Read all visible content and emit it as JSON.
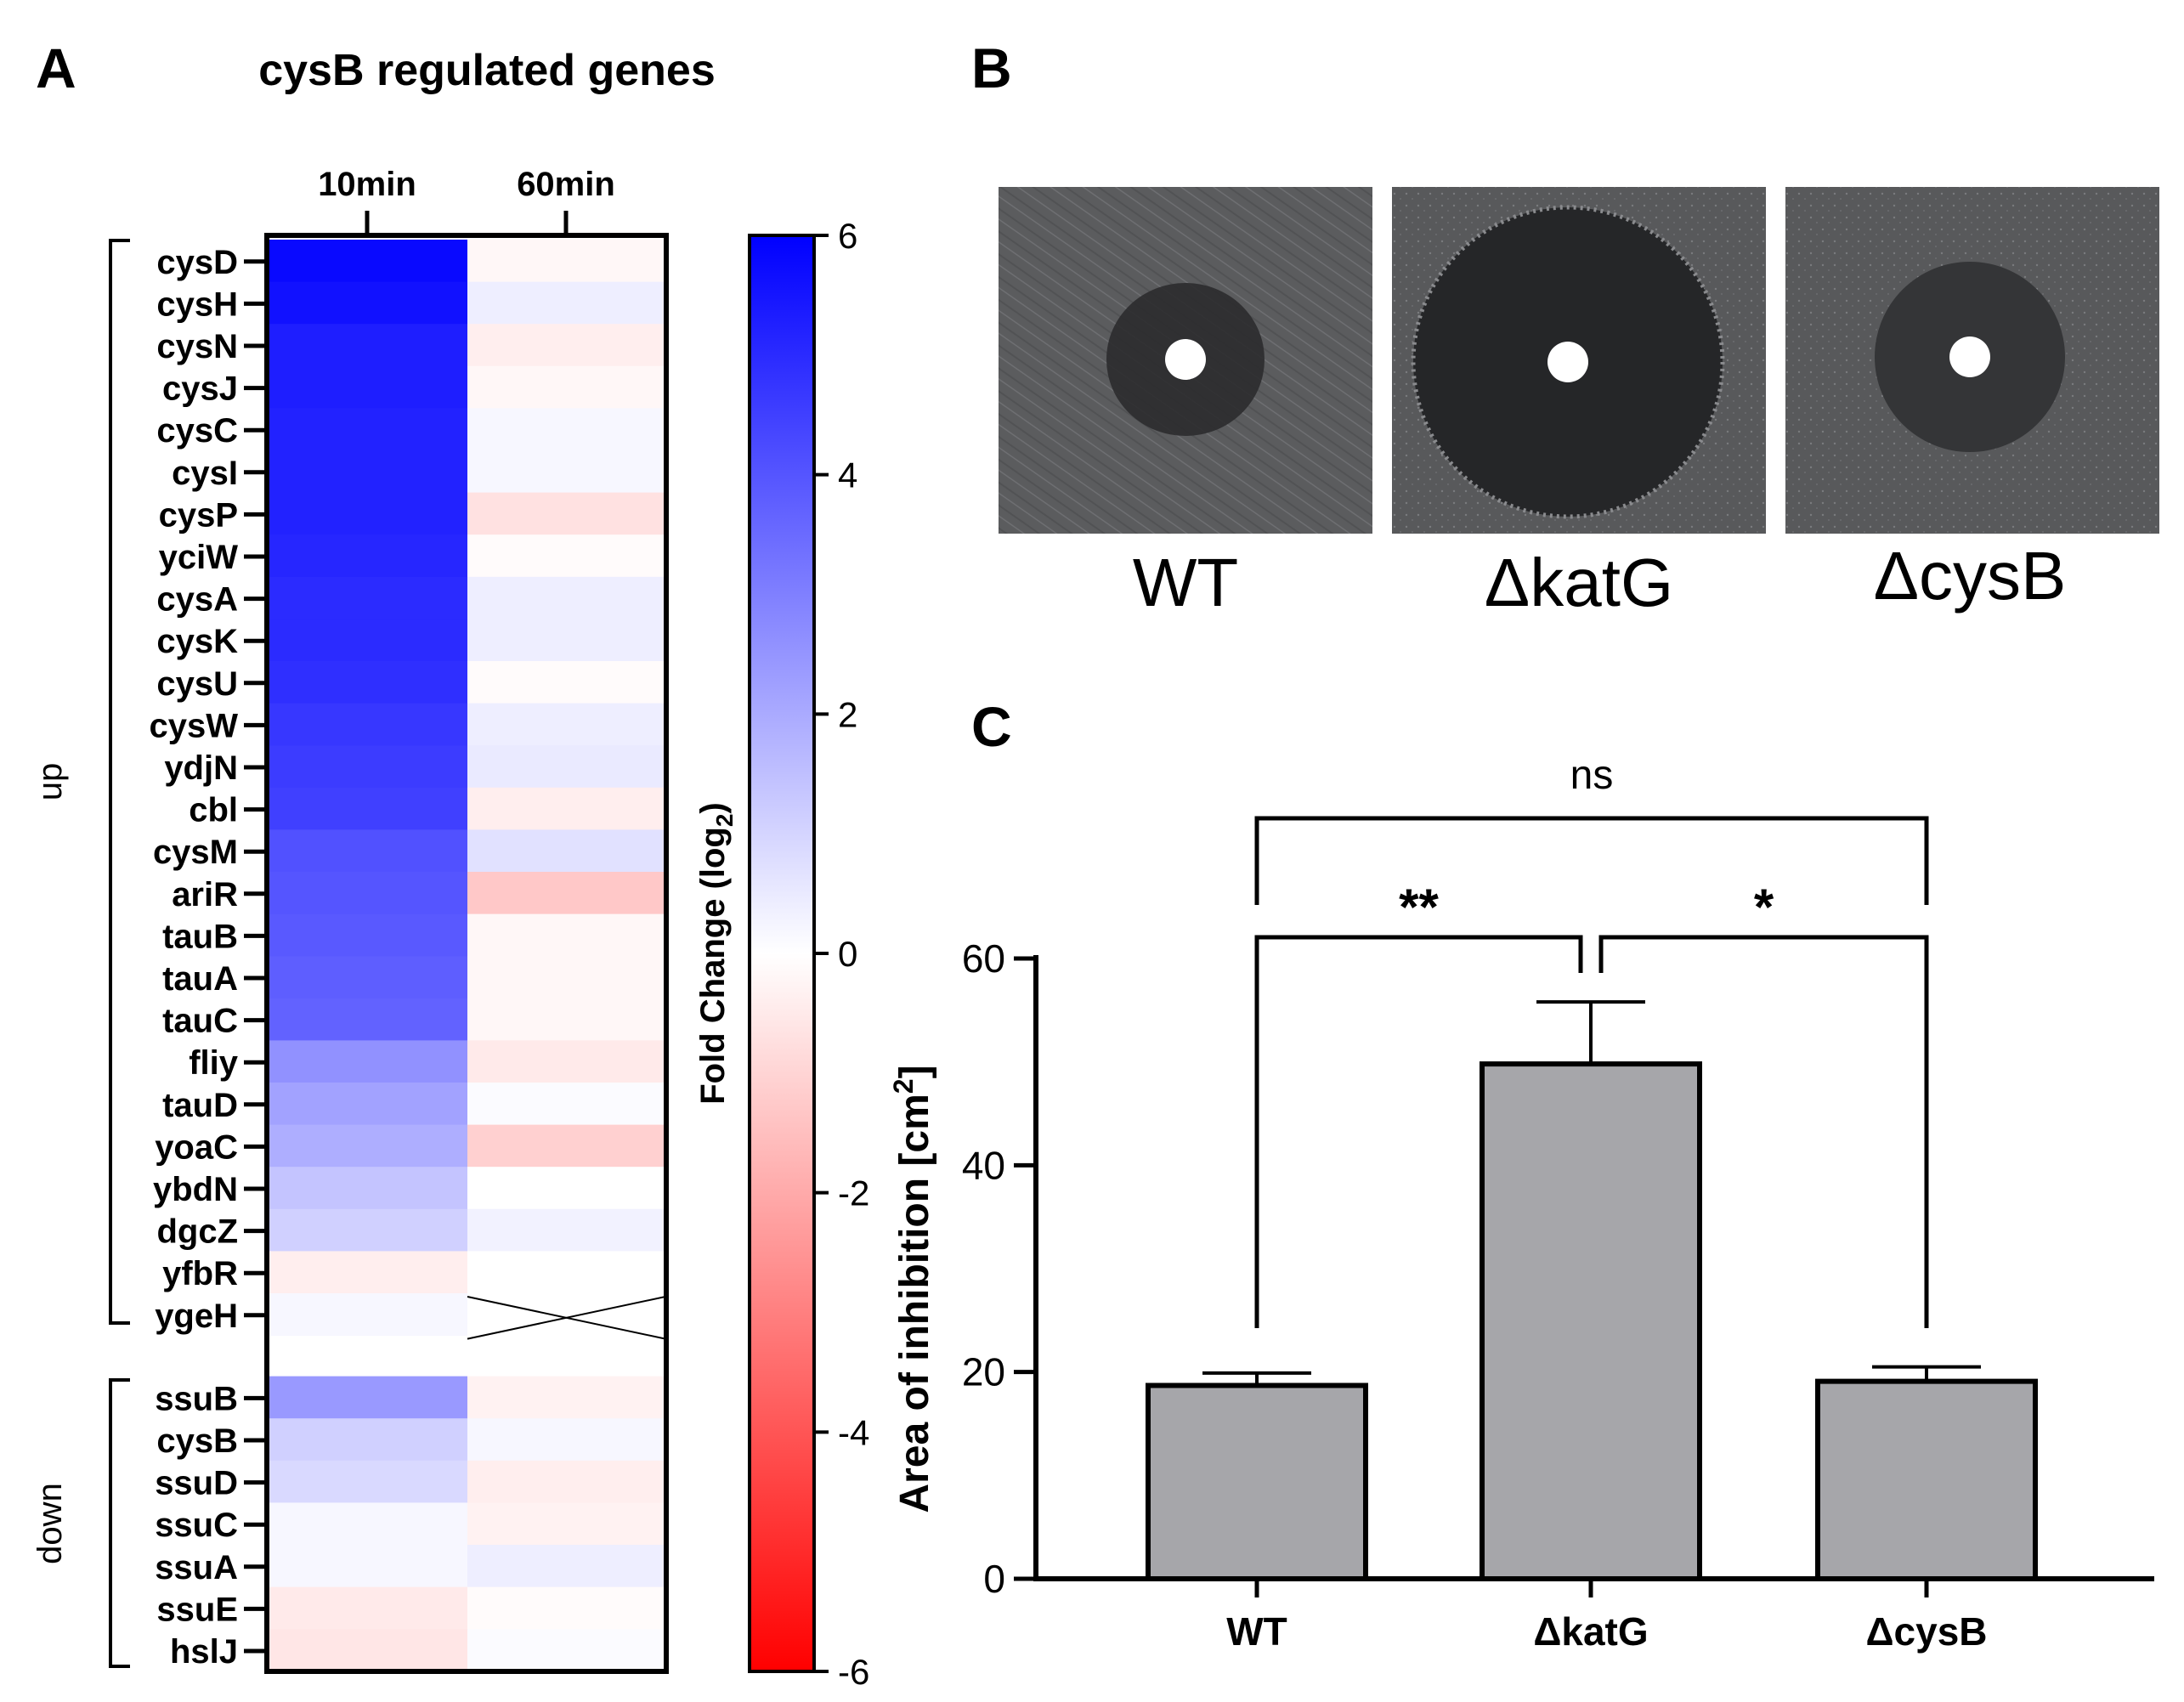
{
  "panels": {
    "a": {
      "letter": "A"
    },
    "b": {
      "letter": "B"
    },
    "c": {
      "letter": "C"
    }
  },
  "chart_data": [
    {
      "type": "heatmap",
      "title": "cysB regulated genes",
      "columns": [
        "10min",
        "60min"
      ],
      "groups": [
        {
          "name": "up",
          "genes": [
            "cysD",
            "cysH",
            "cysN",
            "cysJ",
            "cysC",
            "cysI",
            "cysP",
            "yciW",
            "cysA",
            "cysK",
            "cysU",
            "cysW",
            "ydjN",
            "cbl",
            "cysM",
            "ariR",
            "tauB",
            "tauA",
            "tauC",
            "fliy",
            "tauD",
            "yoaC",
            "ybdN",
            "dgcZ",
            "yfbR",
            "ygeH"
          ]
        },
        {
          "name": "down",
          "genes": [
            "ssuB",
            "cysB",
            "ssuD",
            "ssuC",
            "ssuA",
            "ssuE",
            "hslJ"
          ]
        }
      ],
      "values_10min": [
        5.8,
        5.6,
        5.3,
        5.3,
        5.2,
        5.2,
        5.2,
        5.1,
        5.0,
        5.0,
        4.9,
        4.7,
        4.6,
        4.5,
        4.1,
        4.0,
        3.9,
        3.8,
        3.7,
        2.6,
        2.2,
        1.9,
        1.4,
        1.1,
        -0.4,
        0.2,
        2.4,
        1.1,
        0.9,
        0.2,
        0.2,
        -0.5,
        -0.6
      ],
      "values_60min": [
        -0.2,
        0.4,
        -0.4,
        -0.2,
        0.2,
        0.2,
        -0.7,
        -0.1,
        0.4,
        0.4,
        -0.1,
        0.4,
        0.5,
        -0.4,
        0.7,
        -1.3,
        -0.2,
        -0.2,
        -0.2,
        -0.5,
        0.1,
        -1.1,
        0.0,
        0.3,
        0.0,
        null,
        -0.3,
        0.2,
        -0.4,
        -0.3,
        0.4,
        -0.1,
        0.1
      ],
      "colorbar": {
        "label": "Fold Change (log",
        "label_sub": "2",
        "label_end": ")",
        "ticks": [
          "6",
          "4",
          "2",
          "0",
          "-2",
          "-4",
          "-6"
        ],
        "range": [
          -6,
          6
        ],
        "min_color": "#ff0000",
        "mid_color": "#ffffff",
        "max_color": "#0000ff"
      }
    },
    {
      "type": "bar",
      "title": "",
      "categories": [
        "WT",
        "ΔkatG",
        "ΔcysB"
      ],
      "values": [
        18.7,
        49.8,
        19.1
      ],
      "errors": [
        1.2,
        6.0,
        1.4
      ],
      "ylabel": "Area of inhibition [cm",
      "ylabel_sup": "2",
      "ylabel_end": "]",
      "ylim": [
        0,
        60
      ],
      "yticks": [
        "0",
        "20",
        "40",
        "60"
      ],
      "bar_color": "#a6a6aa",
      "significance": [
        {
          "pair": [
            "WT",
            "ΔkatG"
          ],
          "label": "**"
        },
        {
          "pair": [
            "ΔkatG",
            "ΔcysB"
          ],
          "label": "*"
        },
        {
          "pair": [
            "WT",
            "ΔcysB"
          ],
          "label": "ns"
        }
      ]
    }
  ],
  "photos": {
    "labels": [
      "WT",
      "ΔkatG",
      "ΔcysB"
    ],
    "background": "#5b5c5e",
    "zone_color": "#2c2d2f",
    "disc_color": "#ffffff"
  }
}
